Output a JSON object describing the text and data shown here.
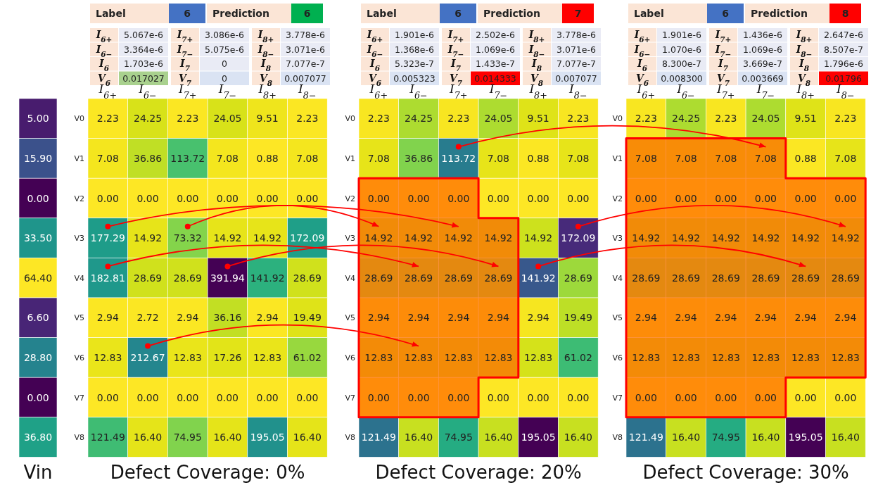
{
  "chart_data": [
    {
      "type": "heatmap",
      "xlabel": "Vin",
      "categories": [
        null
      ],
      "y_categories": [
        null,
        null,
        null,
        null,
        null,
        null,
        null,
        null,
        null
      ],
      "cells": [
        [
          5.0
        ],
        [
          15.9
        ],
        [
          0.0
        ],
        [
          33.5
        ],
        [
          64.4
        ],
        [
          6.6
        ],
        [
          28.8
        ],
        [
          0.0
        ],
        [
          36.8
        ]
      ],
      "cell_labels": [
        [
          "5.00"
        ],
        [
          "15.90"
        ],
        [
          "0.00"
        ],
        [
          "33.50"
        ],
        [
          "64.40"
        ],
        [
          "6.60"
        ],
        [
          "28.80"
        ],
        [
          "0.00"
        ],
        [
          "36.80"
        ]
      ]
    },
    {
      "type": "other",
      "annotations": [
        "Label",
        "6",
        "Prediction",
        "6",
        "I$_{6+}$",
        "5.067e-6",
        "I$_{7+}$",
        "3.086e-6",
        "I$_{8+}$",
        "3.778e-6",
        "I$_{6−}$",
        "3.364e-6",
        "I$_{7−}$",
        "5.075e-6",
        "I$_{8−}$",
        "3.071e-6",
        "I$_{6}$",
        "1.703e-6",
        "I$_{7}$",
        "0",
        "I$_{8}$",
        "7.077e-7",
        "V$_{6}$",
        "0.017027",
        "V$_{7}$",
        "0",
        "V$_{8}$",
        "0.007077"
      ],
      "colors": [
        "#fbe5d6",
        "#4472c4",
        "#fbe5d6",
        "#00b050",
        "#fbe5d6",
        "#e9ebf5",
        "#fbe5d6",
        "#e9ebf5",
        "#fbe5d6",
        "#e9ebf5",
        "#fbe5d6",
        "#e9ebf5",
        "#fbe5d6",
        "#e9ebf5",
        "#fbe5d6",
        "#e9ebf5",
        "#fbe5d6",
        "#e9ebf5",
        "#fbe5d6",
        "#e9ebf5",
        "#fbe5d6",
        "#e9ebf5",
        "#fbe5d6",
        "#a9d18e",
        "#fbe5d6",
        "#dae3f3",
        "#fbe5d6",
        "#dae3f3"
      ]
    },
    {
      "type": "heatmap",
      "xlabel": "Defect Coverage: 0%",
      "categories": [
        "I$_{6+}$",
        "I$_{6−}$",
        "I$_{7+}$",
        "I$_{7−}$",
        "I$_{8+}$",
        "I$_{8−}$"
      ],
      "y_categories": [
        "V0",
        "V1",
        "V2",
        "V3",
        "V4",
        "V5",
        "V6",
        "V7",
        "V8"
      ],
      "cells": [
        [
          2.23,
          24.25,
          2.23,
          24.05,
          9.51,
          2.23
        ],
        [
          7.08,
          36.86,
          113.72,
          7.08,
          0.88,
          7.08
        ],
        [
          0.0,
          0.0,
          0.0,
          0.0,
          0.0,
          0.0
        ],
        [
          177.29,
          14.92,
          73.32,
          14.92,
          14.92,
          172.09
        ],
        [
          182.81,
          28.69,
          28.69,
          391.94,
          141.92,
          28.69
        ],
        [
          2.94,
          2.72,
          2.94,
          36.16,
          2.94,
          19.49
        ],
        [
          12.83,
          212.67,
          12.83,
          17.26,
          12.83,
          61.02
        ],
        [
          0.0,
          0.0,
          0.0,
          0.0,
          0.0,
          0.0
        ],
        [
          121.49,
          16.4,
          74.95,
          16.4,
          195.05,
          16.4
        ]
      ],
      "cell_labels": [
        [
          "2.23",
          "24.25",
          "2.23",
          "24.05",
          "9.51",
          "2.23"
        ],
        [
          "7.08",
          "36.86",
          "113.72",
          "7.08",
          "0.88",
          "7.08"
        ],
        [
          "0.00",
          "0.00",
          "0.00",
          "0.00",
          "0.00",
          "0.00"
        ],
        [
          "177.29",
          "14.92",
          "73.32",
          "14.92",
          "14.92",
          "172.09"
        ],
        [
          "182.81",
          "28.69",
          "28.69",
          "391.94",
          "141.92",
          "28.69"
        ],
        [
          "2.94",
          "2.72",
          "2.94",
          "36.16",
          "2.94",
          "19.49"
        ],
        [
          "12.83",
          "212.67",
          "12.83",
          "17.26",
          "12.83",
          "61.02"
        ],
        [
          "0.00",
          "0.00",
          "0.00",
          "0.00",
          "0.00",
          "0.00"
        ],
        [
          "121.49",
          "16.40",
          "74.95",
          "16.40",
          "195.05",
          "16.40"
        ]
      ]
    },
    {
      "type": "other",
      "annotations": [
        "Label",
        "6",
        "Prediction",
        "7",
        "I$_{6+}$",
        "1.901e-6",
        "I$_{7+}$",
        "2.502e-6",
        "I$_{8+}$",
        "3.778e-6",
        "I$_{6−}$",
        "1.368e-6",
        "I$_{7−}$",
        "1.069e-6",
        "I$_{8−}$",
        "3.071e-6",
        "I$_{6}$",
        "5.323e-7",
        "I$_{7}$",
        "1.433e-7",
        "I$_{8}$",
        "7.077e-7",
        "V$_{6}$",
        "0.005323",
        "V$_{7}$",
        "0.014333",
        "V$_{8}$",
        "0.007077"
      ],
      "colors": [
        "#fbe5d6",
        "#4472c4",
        "#fbe5d6",
        "#ff0000",
        "#fbe5d6",
        "#e9ebf5",
        "#fbe5d6",
        "#e9ebf5",
        "#fbe5d6",
        "#e9ebf5",
        "#fbe5d6",
        "#e9ebf5",
        "#fbe5d6",
        "#e9ebf5",
        "#fbe5d6",
        "#e9ebf5",
        "#fbe5d6",
        "#e9ebf5",
        "#fbe5d6",
        "#e9ebf5",
        "#fbe5d6",
        "#e9ebf5",
        "#fbe5d6",
        "#dae3f3",
        "#fbe5d6",
        "#ff0000",
        "#fbe5d6",
        "#dae3f3"
      ]
    },
    {
      "type": "heatmap",
      "xlabel": "Defect Coverage: 20%",
      "categories": [
        "I$_{6+}$",
        "I$_{6−}$",
        "I$_{7+}$",
        "I$_{7−}$",
        "I$_{8+}$",
        "I$_{8−}$"
      ],
      "y_categories": [
        "V0",
        "V1",
        "V2",
        "V3",
        "V4",
        "V5",
        "V6",
        "V7",
        "V8"
      ],
      "cells": [
        [
          2.23,
          24.25,
          2.23,
          24.05,
          9.51,
          2.23
        ],
        [
          7.08,
          36.86,
          113.72,
          7.08,
          0.88,
          7.08
        ],
        [
          0.0,
          0.0,
          0.0,
          0.0,
          0.0,
          0.0
        ],
        [
          14.92,
          14.92,
          14.92,
          14.92,
          14.92,
          172.09
        ],
        [
          28.69,
          28.69,
          28.69,
          28.69,
          141.92,
          28.69
        ],
        [
          2.94,
          2.94,
          2.94,
          2.94,
          2.94,
          19.49
        ],
        [
          12.83,
          12.83,
          12.83,
          12.83,
          12.83,
          61.02
        ],
        [
          0.0,
          0.0,
          0.0,
          0.0,
          0.0,
          0.0
        ],
        [
          121.49,
          16.4,
          74.95,
          16.4,
          195.05,
          16.4
        ]
      ],
      "cell_labels": [
        [
          "2.23",
          "24.25",
          "2.23",
          "24.05",
          "9.51",
          "2.23"
        ],
        [
          "7.08",
          "36.86",
          "113.72",
          "7.08",
          "0.88",
          "7.08"
        ],
        [
          "0.00",
          "0.00",
          "0.00",
          "0.00",
          "0.00",
          "0.00"
        ],
        [
          "14.92",
          "14.92",
          "14.92",
          "14.92",
          "14.92",
          "172.09"
        ],
        [
          "28.69",
          "28.69",
          "28.69",
          "28.69",
          "141.92",
          "28.69"
        ],
        [
          "2.94",
          "2.94",
          "2.94",
          "2.94",
          "2.94",
          "19.49"
        ],
        [
          "12.83",
          "12.83",
          "12.83",
          "12.83",
          "12.83",
          "61.02"
        ],
        [
          "0.00",
          "0.00",
          "0.00",
          "0.00",
          "0.00",
          "0.00"
        ],
        [
          "121.49",
          "16.40",
          "74.95",
          "16.40",
          "195.05",
          "16.40"
        ]
      ]
    },
    {
      "type": "other",
      "annotations": [
        "Label",
        "6",
        "Prediction",
        "8",
        "I$_{6+}$",
        "1.901e-6",
        "I$_{7+}$",
        "1.436e-6",
        "I$_{8+}$",
        "2.647e-6",
        "I$_{6−}$",
        "1.070e-6",
        "I$_{7−}$",
        "1.069e-6",
        "I$_{8−}$",
        "8.507e-7",
        "I$_{6}$",
        "8.300e-7",
        "I$_{7}$",
        "3.669e-7",
        "I$_{8}$",
        "1.796e-6",
        "V$_{6}$",
        "0.008300",
        "V$_{7}$",
        "0.003669",
        "V$_{8}$",
        "0.01796"
      ],
      "colors": [
        "#fbe5d6",
        "#4472c4",
        "#fbe5d6",
        "#ff0000",
        "#fbe5d6",
        "#e9ebf5",
        "#fbe5d6",
        "#e9ebf5",
        "#fbe5d6",
        "#e9ebf5",
        "#fbe5d6",
        "#e9ebf5",
        "#fbe5d6",
        "#e9ebf5",
        "#fbe5d6",
        "#e9ebf5",
        "#fbe5d6",
        "#e9ebf5",
        "#fbe5d6",
        "#e9ebf5",
        "#fbe5d6",
        "#e9ebf5",
        "#fbe5d6",
        "#dae3f3",
        "#fbe5d6",
        "#dae3f3",
        "#fbe5d6",
        "#ff0000"
      ]
    },
    {
      "type": "heatmap",
      "xlabel": "Defect Coverage: 30%",
      "categories": [
        "I$_{6+}$",
        "I$_{6−}$",
        "I$_{7+}$",
        "I$_{7−}$",
        "I$_{8+}$",
        "I$_{8−}$"
      ],
      "y_categories": [
        "V0",
        "V1",
        "V2",
        "V3",
        "V4",
        "V5",
        "V6",
        "V7",
        "V8"
      ],
      "cells": [
        [
          2.23,
          24.25,
          2.23,
          24.05,
          9.51,
          2.23
        ],
        [
          7.08,
          7.08,
          7.08,
          7.08,
          0.88,
          7.08
        ],
        [
          0.0,
          0.0,
          0.0,
          0.0,
          0.0,
          0.0
        ],
        [
          14.92,
          14.92,
          14.92,
          14.92,
          14.92,
          14.92
        ],
        [
          28.69,
          28.69,
          28.69,
          28.69,
          28.69,
          28.69
        ],
        [
          2.94,
          2.94,
          2.94,
          2.94,
          2.94,
          2.94
        ],
        [
          12.83,
          12.83,
          12.83,
          12.83,
          12.83,
          12.83
        ],
        [
          0.0,
          0.0,
          0.0,
          0.0,
          0.0,
          0.0
        ],
        [
          121.49,
          16.4,
          74.95,
          16.4,
          195.05,
          16.4
        ]
      ],
      "cell_labels": [
        [
          "2.23",
          "24.25",
          "2.23",
          "24.05",
          "9.51",
          "2.23"
        ],
        [
          "7.08",
          "7.08",
          "7.08",
          "7.08",
          "0.88",
          "7.08"
        ],
        [
          "0.00",
          "0.00",
          "0.00",
          "0.00",
          "0.00",
          "0.00"
        ],
        [
          "14.92",
          "14.92",
          "14.92",
          "14.92",
          "14.92",
          "14.92"
        ],
        [
          "28.69",
          "28.69",
          "28.69",
          "28.69",
          "28.69",
          "28.69"
        ],
        [
          "2.94",
          "2.94",
          "2.94",
          "2.94",
          "2.94",
          "2.94"
        ],
        [
          "12.83",
          "12.83",
          "12.83",
          "12.83",
          "12.83",
          "12.83"
        ],
        [
          "0.00",
          "0.00",
          "0.00",
          "0.00",
          "0.00",
          "0.00"
        ],
        [
          "121.49",
          "16.40",
          "74.95",
          "16.40",
          "195.05",
          "16.40"
        ]
      ]
    }
  ]
}
